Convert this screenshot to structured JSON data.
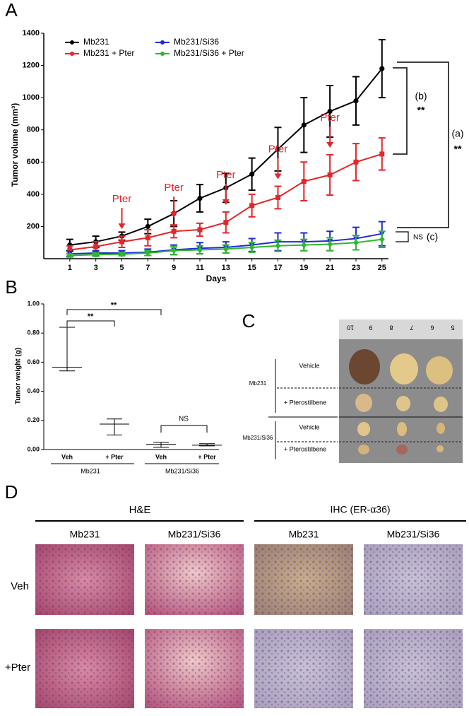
{
  "panel_labels": [
    "A",
    "B",
    "C",
    "D"
  ],
  "chart_data": [
    {
      "type": "line",
      "x_label": "Days",
      "y_label": "Tumor volume (mm³)",
      "x": [
        1,
        3,
        5,
        7,
        9,
        11,
        13,
        15,
        17,
        19,
        21,
        23,
        25
      ],
      "xlim": [
        -1,
        25.5
      ],
      "xticks": [
        1,
        3,
        5,
        7,
        9,
        11,
        13,
        15,
        17,
        19,
        21,
        23,
        25
      ],
      "ylim": [
        0,
        1400
      ],
      "yticks": [
        200,
        400,
        600,
        800,
        1000,
        1200,
        1400
      ],
      "series": [
        {
          "name": "Mb231",
          "color": "#000000",
          "marker": "circle",
          "values": [
            85,
            105,
            140,
            200,
            280,
            375,
            440,
            525,
            680,
            830,
            915,
            980,
            1180
          ],
          "errors": [
            35,
            35,
            25,
            45,
            80,
            85,
            90,
            100,
            135,
            170,
            160,
            150,
            180
          ]
        },
        {
          "name": "Mb231 + Pter",
          "color": "#e3262b",
          "marker": "square",
          "values": [
            55,
            75,
            105,
            130,
            170,
            180,
            225,
            330,
            380,
            480,
            520,
            600,
            650
          ],
          "errors": [
            25,
            30,
            35,
            50,
            40,
            40,
            65,
            70,
            70,
            120,
            125,
            115,
            100
          ]
        },
        {
          "name": "Mb231/Si36",
          "color": "#1f2ad6",
          "marker": "triangle",
          "values": [
            30,
            35,
            35,
            40,
            55,
            65,
            70,
            85,
            105,
            105,
            110,
            125,
            155
          ],
          "errors": [
            15,
            15,
            15,
            20,
            30,
            35,
            35,
            40,
            55,
            55,
            60,
            70,
            75
          ]
        },
        {
          "name": "Mb231/Si36 + Pter",
          "color": "#2eb82e",
          "marker": "diamond",
          "values": [
            20,
            25,
            28,
            35,
            50,
            55,
            60,
            70,
            80,
            85,
            90,
            100,
            120
          ],
          "errors": [
            10,
            10,
            10,
            15,
            25,
            25,
            25,
            30,
            35,
            35,
            40,
            45,
            50
          ]
        }
      ],
      "arrow_label": "Pter",
      "arrow_days": [
        5,
        9,
        13,
        17,
        21
      ],
      "annotations": [
        "(b)",
        "**",
        "(a)",
        "**",
        "NS",
        "(c)"
      ]
    },
    {
      "type": "box",
      "y_label": "Tumor weight (g)",
      "categories": [
        "Veh",
        "+ Pter",
        "Veh",
        "+ Pter"
      ],
      "groups": [
        "Mb231",
        "Mb231/Si36"
      ],
      "min": [
        0.54,
        0.1,
        0.015,
        0.025
      ],
      "median": [
        0.565,
        0.175,
        0.035,
        0.03
      ],
      "max": [
        0.84,
        0.21,
        0.05,
        0.04
      ],
      "ylim": [
        0,
        1.0
      ],
      "yticks": [
        {
          "value": 0,
          "label": "0.00"
        },
        {
          "value": 0.2,
          "label": "0.20"
        },
        {
          "value": 0.4,
          "label": "0.40"
        },
        {
          "value": 0.6,
          "label": "0.60"
        },
        {
          "value": 0.8,
          "label": "0.80"
        },
        {
          "value": 1.0,
          "label": "1.00"
        }
      ],
      "annotations": [
        "**",
        "**",
        "NS"
      ]
    }
  ],
  "panel_c": {
    "ruler": [
      "10",
      "9",
      "8",
      "7",
      "6",
      "5"
    ],
    "rows": [
      {
        "group": "Mb231",
        "treatments": [
          "Vehicle",
          "+ Pterostilbene"
        ]
      },
      {
        "group": "Mb231/Si36",
        "treatments": [
          "Vehicle",
          "+ Pterostilbene"
        ]
      }
    ]
  },
  "panel_d": {
    "headers": [
      "H&E",
      "IHC (ER-α36)"
    ],
    "columns": [
      "Mb231",
      "Mb231/Si36",
      "Mb231",
      "Mb231/Si36"
    ],
    "rows": [
      "Veh",
      "+Pter"
    ]
  }
}
